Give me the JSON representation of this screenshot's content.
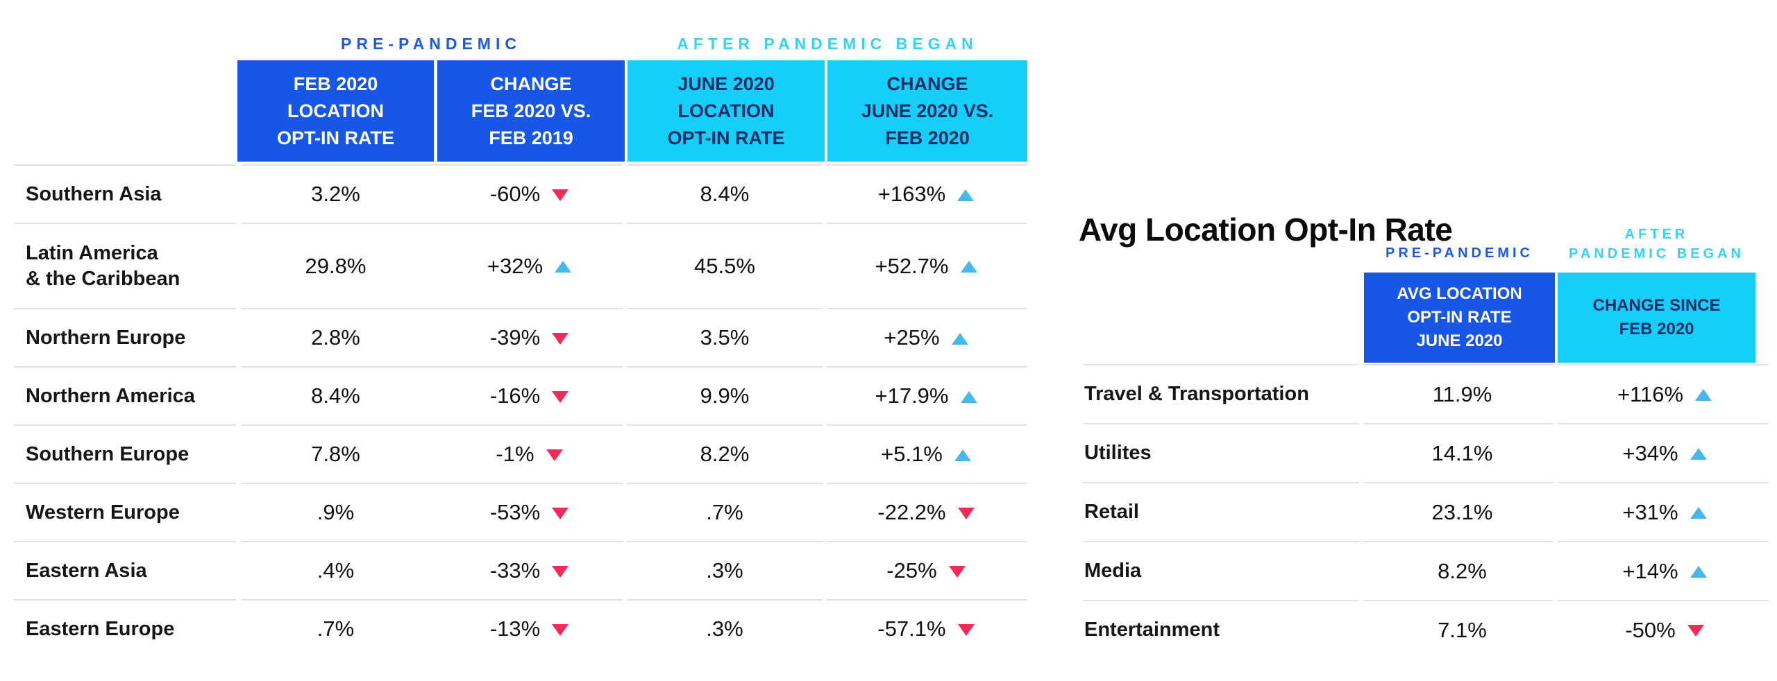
{
  "colors": {
    "pre_pandemic_blue": "#1857e6",
    "after_pandemic_cyan": "#16cff6",
    "header_navy_text": "#0e2c68",
    "up_arrow": "#45b9ec",
    "down_arrow": "#f22a5a",
    "row_separator": "#e3e3e7",
    "text_black": "#161616"
  },
  "chart_data": [
    {
      "type": "table",
      "group_labels": {
        "pre": "PRE-PANDEMIC",
        "post": "AFTER PANDEMIC BEGAN"
      },
      "column_headers": [
        "FEB 2020\nLOCATION\nOPT-IN RATE",
        "CHANGE\nFEB 2020 VS.\nFEB 2019",
        "JUNE 2020\nLOCATION\nOPT-IN RATE",
        "CHANGE\nJUNE 2020 VS.\nFEB 2020"
      ],
      "rows": [
        {
          "label": "Southern Asia",
          "feb_2020_rate": "3.2%",
          "change_feb_2020_vs_feb_2019": "-60%",
          "feb_trend": "down",
          "june_2020_rate": "8.4%",
          "change_june_2020_vs_feb_2020": "+163%",
          "june_trend": "up"
        },
        {
          "label": "Latin America\n& the Caribbean",
          "feb_2020_rate": "29.8%",
          "change_feb_2020_vs_feb_2019": "+32%",
          "feb_trend": "up",
          "june_2020_rate": "45.5%",
          "change_june_2020_vs_feb_2020": "+52.7%",
          "june_trend": "up"
        },
        {
          "label": "Northern Europe",
          "feb_2020_rate": "2.8%",
          "change_feb_2020_vs_feb_2019": "-39%",
          "feb_trend": "down",
          "june_2020_rate": "3.5%",
          "change_june_2020_vs_feb_2020": "+25%",
          "june_trend": "up"
        },
        {
          "label": "Northern America",
          "feb_2020_rate": "8.4%",
          "change_feb_2020_vs_feb_2019": "-16%",
          "feb_trend": "down",
          "june_2020_rate": "9.9%",
          "change_june_2020_vs_feb_2020": "+17.9%",
          "june_trend": "up"
        },
        {
          "label": "Southern Europe",
          "feb_2020_rate": "7.8%",
          "change_feb_2020_vs_feb_2019": "-1%",
          "feb_trend": "down",
          "june_2020_rate": "8.2%",
          "change_june_2020_vs_feb_2020": "+5.1%",
          "june_trend": "up"
        },
        {
          "label": "Western Europe",
          "feb_2020_rate": ".9%",
          "change_feb_2020_vs_feb_2019": "-53%",
          "feb_trend": "down",
          "june_2020_rate": ".7%",
          "change_june_2020_vs_feb_2020": "-22.2%",
          "june_trend": "down"
        },
        {
          "label": "Eastern Asia",
          "feb_2020_rate": ".4%",
          "change_feb_2020_vs_feb_2019": "-33%",
          "feb_trend": "down",
          "june_2020_rate": ".3%",
          "change_june_2020_vs_feb_2020": "-25%",
          "june_trend": "down"
        },
        {
          "label": "Eastern Europe",
          "feb_2020_rate": ".7%",
          "change_feb_2020_vs_feb_2019": "-13%",
          "feb_trend": "down",
          "june_2020_rate": ".3%",
          "change_june_2020_vs_feb_2020": "-57.1%",
          "june_trend": "down"
        }
      ]
    },
    {
      "type": "table",
      "title": "Avg Location Opt-In Rate",
      "group_labels": {
        "pre": "PRE-PANDEMIC",
        "post": "AFTER\nPANDEMIC BEGAN"
      },
      "column_headers": [
        "AVG LOCATION\nOPT-IN RATE\nJUNE 2020",
        "CHANGE SINCE\nFEB 2020"
      ],
      "rows": [
        {
          "label": "Travel & Transportation",
          "avg_rate_june_2020": "11.9%",
          "change_since_feb_2020": "+116%",
          "trend": "up"
        },
        {
          "label": "Utilites",
          "avg_rate_june_2020": "14.1%",
          "change_since_feb_2020": "+34%",
          "trend": "up"
        },
        {
          "label": "Retail",
          "avg_rate_june_2020": "23.1%",
          "change_since_feb_2020": "+31%",
          "trend": "up"
        },
        {
          "label": "Media",
          "avg_rate_june_2020": "8.2%",
          "change_since_feb_2020": "+14%",
          "trend": "up"
        },
        {
          "label": "Entertainment",
          "avg_rate_june_2020": "7.1%",
          "change_since_feb_2020": "-50%",
          "trend": "down"
        }
      ]
    }
  ]
}
